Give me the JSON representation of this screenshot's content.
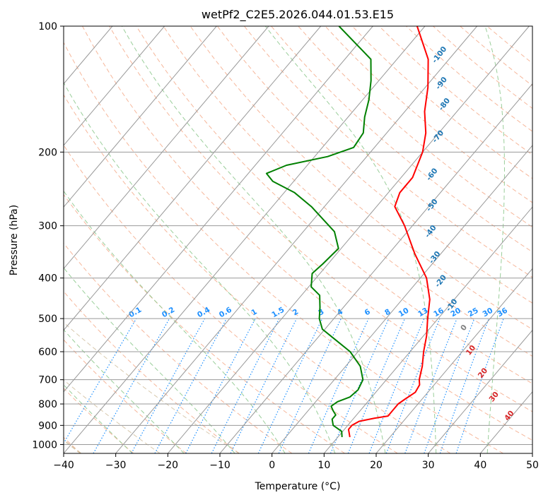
{
  "chart_data": {
    "type": "line",
    "subtype": "skew-T log-P diagram",
    "title": "wetPf2_C2E5.2026.044.01.53.E15",
    "xlabel": "Temperature (°C)",
    "ylabel": "Pressure (hPa)",
    "xlim": [
      -40,
      50
    ],
    "ylim": [
      1050,
      100
    ],
    "y_scale": "log",
    "x_ticks": [
      "−40",
      "−30",
      "−20",
      "−10",
      "0",
      "10",
      "20",
      "30",
      "40",
      "50"
    ],
    "y_ticks": [
      "100",
      "200",
      "300",
      "400",
      "500",
      "600",
      "700",
      "800",
      "900",
      "1000"
    ],
    "grid": true,
    "series": [
      {
        "color": "#ff0000",
        "points": [
          {
            "p": 960,
            "t": 12.3
          },
          {
            "p": 920,
            "t": 10.8
          },
          {
            "p": 900,
            "t": 10.8
          },
          {
            "p": 880,
            "t": 11.5
          },
          {
            "p": 865,
            "t": 14
          },
          {
            "p": 855,
            "t": 16.2
          },
          {
            "p": 830,
            "t": 16.2
          },
          {
            "p": 800,
            "t": 16.2
          },
          {
            "p": 780,
            "t": 16.7
          },
          {
            "p": 750,
            "t": 17.6
          },
          {
            "p": 720,
            "t": 17.2
          },
          {
            "p": 700,
            "t": 16.3
          },
          {
            "p": 650,
            "t": 14.7
          },
          {
            "p": 600,
            "t": 12.6
          },
          {
            "p": 550,
            "t": 10.6
          },
          {
            "p": 500,
            "t": 8.0
          },
          {
            "p": 450,
            "t": 5.3
          },
          {
            "p": 400,
            "t": 1.2
          },
          {
            "p": 350,
            "t": -5.0
          },
          {
            "p": 300,
            "t": -11.5
          },
          {
            "p": 270,
            "t": -16.5
          },
          {
            "p": 250,
            "t": -17.8
          },
          {
            "p": 230,
            "t": -17.8
          },
          {
            "p": 200,
            "t": -20.0
          },
          {
            "p": 180,
            "t": -22.5
          },
          {
            "p": 160,
            "t": -26.2
          },
          {
            "p": 140,
            "t": -29.5
          },
          {
            "p": 120,
            "t": -34.0
          },
          {
            "p": 100,
            "t": -41.5
          }
        ]
      },
      {
        "color": "#008000",
        "points": [
          {
            "p": 960,
            "t": 10.8
          },
          {
            "p": 930,
            "t": 9.8
          },
          {
            "p": 900,
            "t": 7.2
          },
          {
            "p": 870,
            "t": 6.0
          },
          {
            "p": 850,
            "t": 6.0
          },
          {
            "p": 830,
            "t": 4.8
          },
          {
            "p": 810,
            "t": 3.7
          },
          {
            "p": 790,
            "t": 4.2
          },
          {
            "p": 770,
            "t": 5.8
          },
          {
            "p": 740,
            "t": 6.2
          },
          {
            "p": 700,
            "t": 5.5
          },
          {
            "p": 650,
            "t": 2.8
          },
          {
            "p": 600,
            "t": -1.5
          },
          {
            "p": 560,
            "t": -6.5
          },
          {
            "p": 530,
            "t": -10.5
          },
          {
            "p": 500,
            "t": -12.8
          },
          {
            "p": 470,
            "t": -14.5
          },
          {
            "p": 440,
            "t": -16.5
          },
          {
            "p": 420,
            "t": -19.5
          },
          {
            "p": 390,
            "t": -21.5
          },
          {
            "p": 370,
            "t": -21.0
          },
          {
            "p": 340,
            "t": -20.5
          },
          {
            "p": 310,
            "t": -24.0
          },
          {
            "p": 270,
            "t": -32.5
          },
          {
            "p": 250,
            "t": -38.0
          },
          {
            "p": 235,
            "t": -44.0
          },
          {
            "p": 225,
            "t": -46.5
          },
          {
            "p": 215,
            "t": -44.0
          },
          {
            "p": 205,
            "t": -37.5
          },
          {
            "p": 195,
            "t": -34.0
          },
          {
            "p": 180,
            "t": -34.5
          },
          {
            "p": 165,
            "t": -36.8
          },
          {
            "p": 150,
            "t": -38.8
          },
          {
            "p": 135,
            "t": -41.5
          },
          {
            "p": 120,
            "t": -45.0
          },
          {
            "p": 100,
            "t": -56.5
          }
        ]
      }
    ],
    "background_lines": {
      "isobars": [
        100,
        200,
        300,
        400,
        500,
        600,
        700,
        800,
        900,
        1000
      ],
      "isotherm_step": 10,
      "dry_adiabats": [
        -60,
        -50,
        -40,
        -30,
        -20,
        -10,
        0,
        10,
        20,
        30,
        40,
        50,
        60,
        70,
        80,
        90,
        100,
        110,
        120,
        130,
        140,
        150,
        160,
        170,
        180,
        190,
        200
      ],
      "moist_adiabats": [
        -30,
        -20,
        -10,
        0,
        10,
        20,
        30,
        40
      ],
      "mixing_ratios": [
        "0.1",
        "0.2",
        "0.4",
        "0.6",
        "1",
        "1.5",
        "2",
        "3",
        "4",
        "6",
        "8",
        "10",
        "13",
        "16",
        "20",
        "25",
        "30",
        "36"
      ],
      "wet_bulb_labels": [
        "-100",
        "-90",
        "-80",
        "-70",
        "-60",
        "-50",
        "-40",
        "-30",
        "-20",
        "-10",
        "0",
        "10",
        "20",
        "30",
        "40"
      ]
    },
    "colors": {
      "isotherm": "#999999",
      "isobar": "#999999",
      "dry_adiabat": "#f4a582",
      "moist_adiabat": "#8fc98f",
      "mixing_ratio": "#1e90ff",
      "cold_label": "#1f77b4",
      "warm_label": "#d62728",
      "zero_label": "#808080",
      "curve_dry_adiabats": "#c8b28c"
    }
  }
}
